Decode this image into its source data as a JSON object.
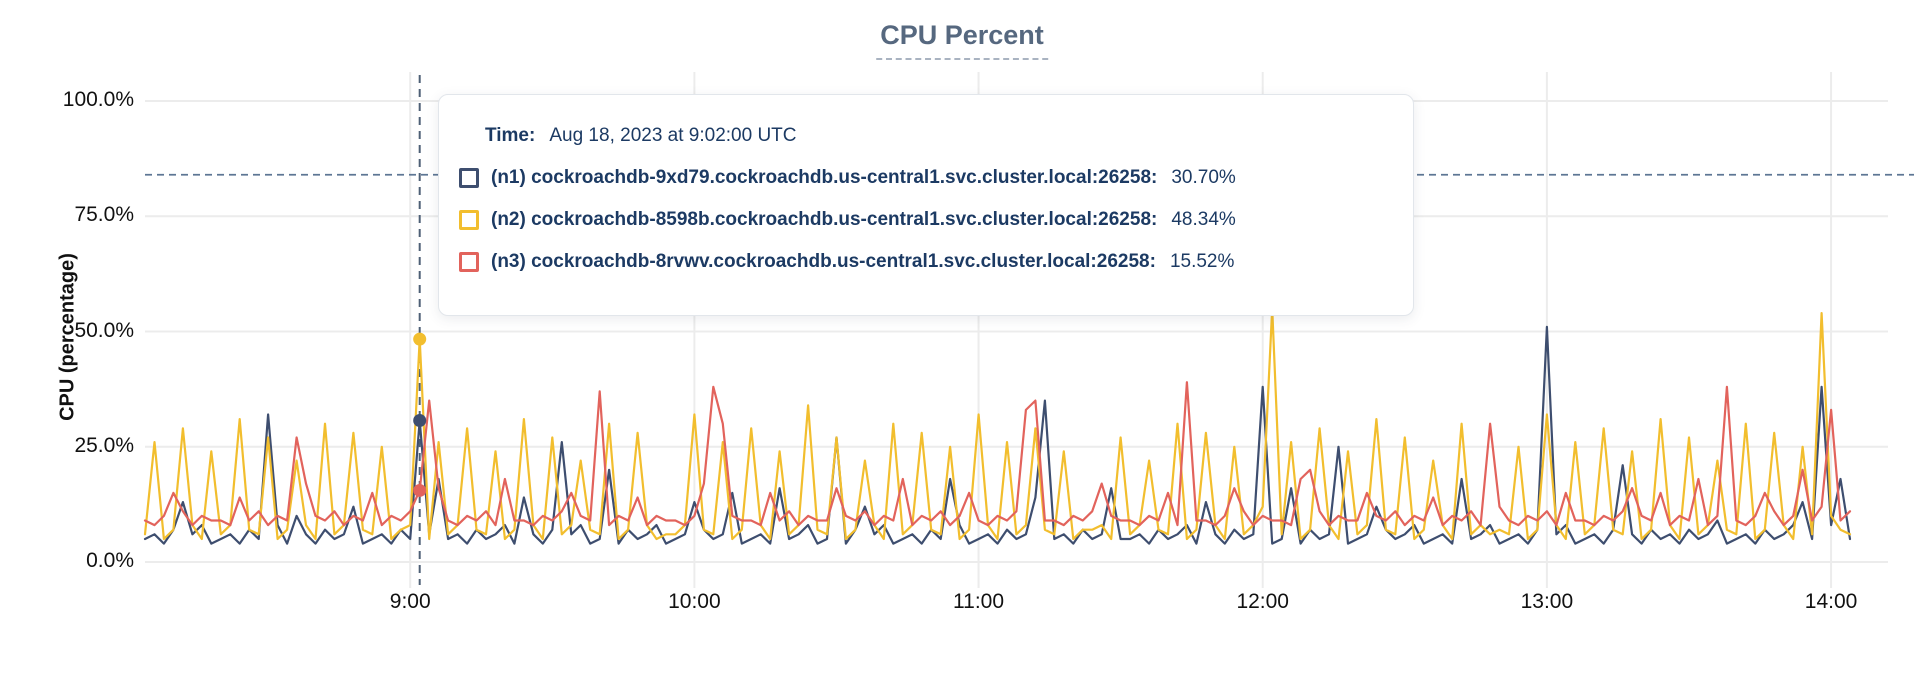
{
  "title": "CPU Percent",
  "colors": {
    "grid": "#ececec",
    "threshold": "#5d7694",
    "cursor": "#4e6076",
    "title": "#56687f",
    "axis_text": "#111111",
    "tooltip_text": "#1c3a63"
  },
  "tooltip": {
    "time_label": "Time:",
    "time_value": "Aug 18, 2023 at 9:02:00 UTC",
    "rows": [
      {
        "name": "(n1) cockroachdb-9xd79.cockroachdb.us-central1.svc.cluster.local:26258:",
        "value": "30.70%",
        "color": "#3E4E6F"
      },
      {
        "name": "(n2) cockroachdb-8598b.cockroachdb.us-central1.svc.cluster.local:26258:",
        "value": "48.34%",
        "color": "#F2BE2E"
      },
      {
        "name": "(n3) cockroachdb-8rvwv.cockroachdb.us-central1.svc.cluster.local:26258:",
        "value": "15.52%",
        "color": "#E2635C"
      }
    ]
  },
  "chart_data": {
    "type": "line",
    "title": "CPU Percent",
    "xlabel": "",
    "ylabel": "CPU (percentage)",
    "ylim": [
      0,
      100
    ],
    "grid": true,
    "y_ticks": [
      "100.0%",
      "75.0%",
      "50.0%",
      "25.0%",
      "0.0%"
    ],
    "y_tick_values": [
      100,
      75,
      50,
      25,
      0
    ],
    "x_ticks": [
      {
        "label": "9:00",
        "minutes": 540
      },
      {
        "label": "10:00",
        "minutes": 600
      },
      {
        "label": "11:00",
        "minutes": 660
      },
      {
        "label": "12:00",
        "minutes": 720
      },
      {
        "label": "13:00",
        "minutes": 780
      },
      {
        "label": "14:00",
        "minutes": 840
      }
    ],
    "x_start_minutes": 484,
    "x_step_minutes": 2,
    "x_range_minutes": [
      484,
      844
    ],
    "threshold_value": 84,
    "cursor_minutes": 542,
    "cursor_time": "9:02:00",
    "series": [
      {
        "name": "(n1) cockroachdb-9xd79.cockroachdb.us-central1.svc.cluster.local:26258",
        "color": "#3E4E6F",
        "cursor_value": 30.7,
        "values": [
          5,
          6,
          4,
          7,
          13,
          6,
          8,
          4,
          5,
          6,
          4,
          7,
          5,
          32,
          8,
          4,
          10,
          6,
          4,
          7,
          5,
          6,
          12,
          4,
          5,
          6,
          4,
          7,
          5,
          30.7,
          6,
          18,
          5,
          6,
          4,
          7,
          5,
          6,
          8,
          4,
          14,
          6,
          4,
          7,
          26,
          6,
          8,
          4,
          5,
          20,
          4,
          7,
          5,
          6,
          8,
          4,
          5,
          6,
          13,
          7,
          5,
          6,
          15,
          4,
          5,
          6,
          4,
          16,
          5,
          6,
          8,
          4,
          5,
          27,
          4,
          7,
          12,
          6,
          8,
          4,
          5,
          6,
          4,
          7,
          5,
          18,
          8,
          4,
          5,
          6,
          4,
          7,
          5,
          6,
          14,
          35,
          5,
          6,
          4,
          7,
          5,
          6,
          16,
          5,
          5,
          6,
          4,
          7,
          5,
          6,
          8,
          4,
          13,
          6,
          4,
          7,
          5,
          6,
          38,
          4,
          5,
          16,
          4,
          7,
          5,
          6,
          25,
          4,
          5,
          6,
          12,
          7,
          5,
          6,
          8,
          4,
          5,
          6,
          4,
          18,
          5,
          6,
          8,
          4,
          5,
          6,
          4,
          7,
          51,
          6,
          8,
          4,
          5,
          6,
          4,
          7,
          21,
          6,
          4,
          7,
          5,
          6,
          4,
          7,
          5,
          6,
          9,
          4,
          5,
          6,
          4,
          7,
          5,
          6,
          8,
          13,
          5,
          38,
          8,
          18,
          5
        ]
      },
      {
        "name": "(n2) cockroachdb-8598b.cockroachdb.us-central1.svc.cluster.local:26258",
        "color": "#F2BE2E",
        "cursor_value": 48.34,
        "values": [
          6,
          26,
          5,
          7,
          29,
          8,
          5,
          24,
          6,
          8,
          31,
          7,
          6,
          27,
          5,
          7,
          22,
          8,
          5,
          30,
          6,
          8,
          28,
          7,
          6,
          25,
          5,
          7,
          8,
          48.34,
          5,
          26,
          6,
          8,
          29,
          7,
          6,
          24,
          5,
          7,
          31,
          8,
          5,
          27,
          6,
          8,
          22,
          7,
          6,
          30,
          5,
          7,
          28,
          8,
          5,
          6,
          6,
          8,
          32,
          7,
          6,
          26,
          5,
          7,
          29,
          8,
          5,
          24,
          6,
          8,
          34,
          7,
          6,
          27,
          5,
          7,
          22,
          8,
          5,
          30,
          6,
          8,
          28,
          7,
          6,
          25,
          5,
          7,
          32,
          8,
          5,
          26,
          6,
          8,
          29,
          7,
          6,
          24,
          5,
          7,
          7,
          8,
          5,
          27,
          6,
          8,
          22,
          7,
          6,
          30,
          5,
          7,
          28,
          8,
          5,
          25,
          6,
          8,
          12,
          55,
          6,
          26,
          5,
          7,
          29,
          8,
          5,
          24,
          6,
          8,
          31,
          7,
          6,
          27,
          5,
          7,
          22,
          8,
          5,
          30,
          6,
          8,
          6,
          7,
          6,
          25,
          5,
          7,
          32,
          8,
          5,
          26,
          6,
          8,
          29,
          7,
          6,
          24,
          5,
          7,
          31,
          8,
          5,
          27,
          6,
          8,
          22,
          7,
          6,
          30,
          5,
          7,
          28,
          8,
          5,
          25,
          6,
          54,
          10,
          7,
          6
        ]
      },
      {
        "name": "(n3) cockroachdb-8rvwv.cockroachdb.us-central1.svc.cluster.local:26258",
        "color": "#E2635C",
        "cursor_value": 15.52,
        "values": [
          9,
          8,
          10,
          15,
          11,
          8,
          10,
          9,
          9,
          8,
          14,
          9,
          11,
          8,
          10,
          9,
          27,
          17,
          10,
          9,
          11,
          8,
          10,
          9,
          15,
          8,
          10,
          9,
          11,
          15.52,
          35,
          16,
          9,
          8,
          10,
          9,
          11,
          8,
          18,
          9,
          9,
          8,
          10,
          9,
          11,
          15,
          10,
          9,
          37,
          8,
          10,
          9,
          14,
          8,
          10,
          9,
          9,
          8,
          10,
          17,
          38,
          30,
          10,
          9,
          9,
          8,
          15,
          9,
          11,
          8,
          10,
          9,
          9,
          16,
          10,
          9,
          11,
          8,
          10,
          9,
          18,
          8,
          10,
          9,
          11,
          8,
          10,
          15,
          9,
          8,
          10,
          9,
          11,
          33,
          35,
          9,
          9,
          8,
          10,
          9,
          11,
          17,
          10,
          9,
          9,
          8,
          10,
          9,
          15,
          8,
          39,
          9,
          9,
          8,
          10,
          16,
          11,
          8,
          10,
          9,
          9,
          8,
          18,
          20,
          11,
          8,
          10,
          9,
          9,
          15,
          10,
          9,
          11,
          8,
          10,
          9,
          14,
          8,
          10,
          9,
          11,
          8,
          30,
          12,
          9,
          8,
          10,
          9,
          11,
          8,
          15,
          9,
          9,
          8,
          10,
          9,
          11,
          16,
          10,
          9,
          15,
          8,
          10,
          9,
          18,
          8,
          10,
          38,
          9,
          8,
          10,
          15,
          11,
          8,
          10,
          20,
          9,
          12,
          33,
          9,
          11
        ]
      }
    ]
  }
}
